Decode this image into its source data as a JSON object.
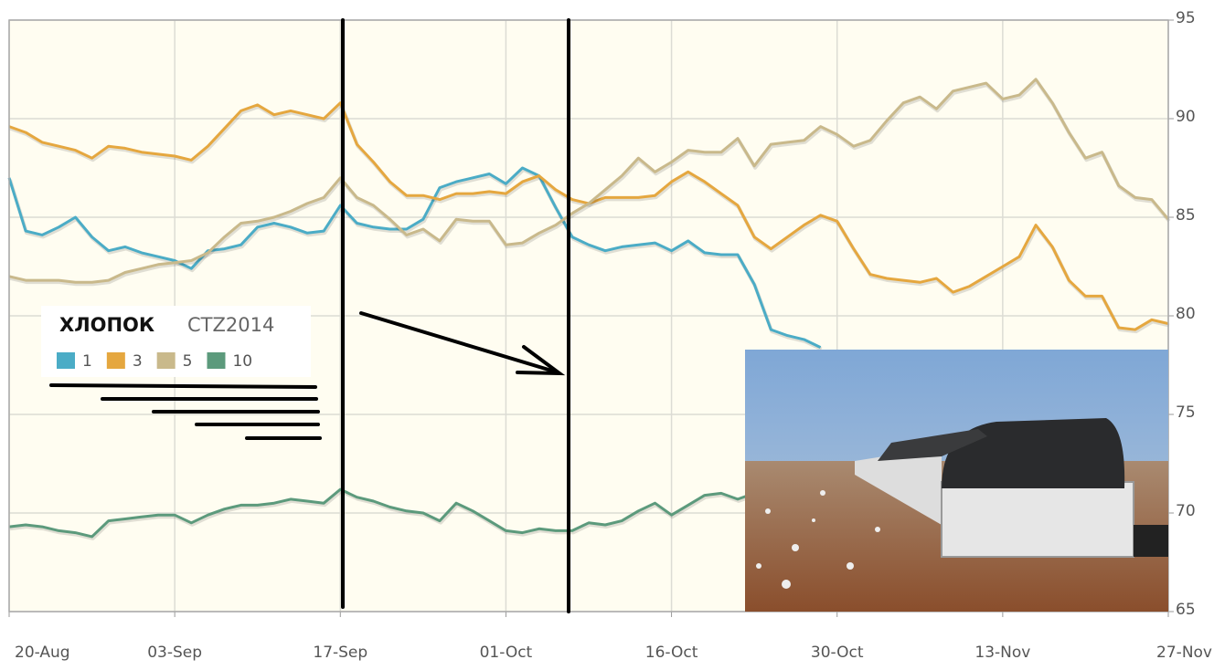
{
  "chart_data": {
    "type": "line",
    "title": "ХЛОПОК",
    "subtitle": "CTZ2014",
    "categories": [
      "20-Aug",
      null,
      null,
      null,
      null,
      null,
      null,
      null,
      null,
      null,
      "03-Sep",
      null,
      null,
      null,
      null,
      null,
      null,
      null,
      null,
      null,
      "17-Sep",
      null,
      null,
      null,
      null,
      null,
      null,
      null,
      null,
      null,
      "01-Oct",
      null,
      null,
      null,
      null,
      null,
      null,
      null,
      null,
      null,
      "16-Oct",
      null,
      null,
      null,
      null,
      null,
      null,
      null,
      null,
      null,
      "30-Oct",
      null,
      null,
      null,
      null,
      null,
      null,
      null,
      null,
      null,
      "13-Nov",
      null,
      null,
      null,
      null,
      null,
      null,
      null,
      null,
      null,
      "27-Nov"
    ],
    "series": [
      {
        "name": "1",
        "color": "#4bacc6",
        "values": [
          87.0,
          84.3,
          84.1,
          84.5,
          85.0,
          84.0,
          83.3,
          83.5,
          83.2,
          83.0,
          82.8,
          82.4,
          83.3,
          83.4,
          83.6,
          84.5,
          84.7,
          84.5,
          84.2,
          84.3,
          85.6,
          84.7,
          84.5,
          84.4,
          84.4,
          84.9,
          86.5,
          86.8,
          87.0,
          87.2,
          86.7,
          87.5,
          87.1,
          85.5,
          84.0,
          83.6,
          83.3,
          83.5,
          83.6,
          83.7,
          83.3,
          83.8,
          83.2,
          83.1,
          83.1,
          81.6,
          79.3,
          79.0,
          78.8,
          78.4,
          null,
          null,
          null,
          null,
          null,
          null,
          null,
          null,
          null,
          null,
          null,
          null,
          null,
          null,
          null,
          null,
          null,
          null,
          null,
          null,
          null
        ]
      },
      {
        "name": "3",
        "color": "#e5a73f",
        "values": [
          89.6,
          89.3,
          88.8,
          88.6,
          88.4,
          88.0,
          88.6,
          88.5,
          88.3,
          88.2,
          88.1,
          87.9,
          88.6,
          89.5,
          90.4,
          90.7,
          90.2,
          90.4,
          90.2,
          90.0,
          90.8,
          88.7,
          87.8,
          86.8,
          86.1,
          86.1,
          85.9,
          86.2,
          86.2,
          86.3,
          86.2,
          86.8,
          87.1,
          86.4,
          85.9,
          85.7,
          86.0,
          86.0,
          86.0,
          86.1,
          86.8,
          87.3,
          86.8,
          86.2,
          85.6,
          84.0,
          83.4,
          84.0,
          84.6,
          85.1,
          84.8,
          83.4,
          82.1,
          81.9,
          81.8,
          81.7,
          81.9,
          81.2,
          81.5,
          82.0,
          82.5,
          83.0,
          84.6,
          83.5,
          81.8,
          81.0,
          81.0,
          79.4,
          79.3,
          79.8,
          79.6
        ]
      },
      {
        "name": "5",
        "color": "#c9b98b",
        "values": [
          82.0,
          81.8,
          81.8,
          81.8,
          81.7,
          81.7,
          81.8,
          82.2,
          82.4,
          82.6,
          82.7,
          82.8,
          83.2,
          84.0,
          84.7,
          84.8,
          85.0,
          85.3,
          85.7,
          86.0,
          87.0,
          86.0,
          85.6,
          84.9,
          84.1,
          84.4,
          83.8,
          84.9,
          84.8,
          84.8,
          83.6,
          83.7,
          84.2,
          84.6,
          85.2,
          85.7,
          86.4,
          87.1,
          88.0,
          87.3,
          87.8,
          88.4,
          88.3,
          88.3,
          89.0,
          87.6,
          88.7,
          88.8,
          88.9,
          89.6,
          89.2,
          88.6,
          88.9,
          89.9,
          90.8,
          91.1,
          90.5,
          91.4,
          91.6,
          91.8,
          91.0,
          91.2,
          92.0,
          90.8,
          89.3,
          88.0,
          88.3,
          86.6,
          86.0,
          85.9,
          84.9
        ]
      },
      {
        "name": "10",
        "color": "#5c9a7c",
        "values": [
          69.3,
          69.4,
          69.3,
          69.1,
          69.0,
          68.8,
          69.6,
          69.7,
          69.8,
          69.9,
          69.9,
          69.5,
          69.9,
          70.2,
          70.4,
          70.4,
          70.5,
          70.7,
          70.6,
          70.5,
          71.2,
          70.8,
          70.6,
          70.3,
          70.1,
          70.0,
          69.6,
          70.5,
          70.1,
          69.6,
          69.1,
          69.0,
          69.2,
          69.1,
          69.1,
          69.5,
          69.4,
          69.6,
          70.1,
          70.5,
          69.9,
          70.4,
          70.9,
          71.0,
          70.7,
          71.0,
          null,
          null,
          null,
          null,
          null,
          null,
          null,
          null,
          null,
          null,
          null,
          null,
          null,
          null,
          null,
          null,
          null,
          null,
          null,
          null,
          null,
          null,
          null,
          null,
          null
        ]
      }
    ],
    "ylim": [
      65,
      95
    ],
    "yticks": [
      65,
      70,
      75,
      80,
      85,
      90,
      95
    ],
    "grid": true
  }
}
